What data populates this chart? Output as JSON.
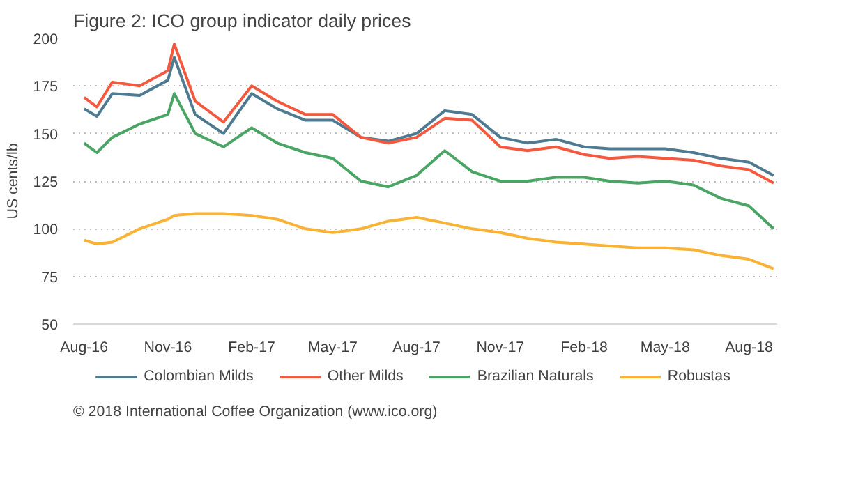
{
  "chart_data": {
    "type": "line",
    "title": "Figure 2: ICO group indicator daily prices",
    "ylabel": "US cents/lb",
    "x": [
      "2016-08-01",
      "2016-08-15",
      "2016-09-01",
      "2016-10-01",
      "2016-11-01",
      "2016-11-08",
      "2016-12-01",
      "2017-01-01",
      "2017-02-01",
      "2017-03-01",
      "2017-04-01",
      "2017-05-01",
      "2017-06-01",
      "2017-07-01",
      "2017-08-01",
      "2017-09-01",
      "2017-10-01",
      "2017-11-01",
      "2017-12-01",
      "2018-01-01",
      "2018-02-01",
      "2018-03-01",
      "2018-04-01",
      "2018-05-01",
      "2018-06-01",
      "2018-07-01",
      "2018-08-01",
      "2018-08-28"
    ],
    "series": [
      {
        "name": "Colombian Milds",
        "color": "#4e7b91",
        "values": [
          163,
          159,
          171,
          170,
          178,
          190,
          160,
          150,
          171,
          163,
          157,
          157,
          148,
          146,
          150,
          162,
          160,
          148,
          145,
          147,
          143,
          142,
          142,
          142,
          140,
          137,
          135,
          128
        ]
      },
      {
        "name": "Other Milds",
        "color": "#f4593f",
        "values": [
          169,
          164,
          177,
          175,
          183,
          197,
          167,
          156,
          175,
          167,
          160,
          160,
          148,
          145,
          148,
          158,
          157,
          143,
          141,
          143,
          139,
          137,
          138,
          137,
          136,
          133,
          131,
          124
        ]
      },
      {
        "name": "Brazilian Naturals",
        "color": "#4aa564",
        "values": [
          145,
          140,
          148,
          155,
          160,
          171,
          150,
          143,
          153,
          145,
          140,
          137,
          125,
          122,
          128,
          141,
          130,
          125,
          125,
          127,
          127,
          125,
          124,
          125,
          123,
          116,
          112,
          100
        ]
      },
      {
        "name": "Robustas",
        "color": "#f9b233",
        "values": [
          94,
          92,
          93,
          100,
          105,
          107,
          108,
          108,
          107,
          105,
          100,
          98,
          100,
          104,
          106,
          103,
          100,
          98,
          95,
          93,
          92,
          91,
          90,
          90,
          89,
          86,
          84,
          79
        ]
      }
    ],
    "xlim": [
      "2016-07-20",
      "2018-09-01"
    ],
    "xticks": [
      {
        "value": "2016-08-01",
        "label": "Aug-16"
      },
      {
        "value": "2016-11-01",
        "label": "Nov-16"
      },
      {
        "value": "2017-02-01",
        "label": "Feb-17"
      },
      {
        "value": "2017-05-01",
        "label": "May-17"
      },
      {
        "value": "2017-08-01",
        "label": "Aug-17"
      },
      {
        "value": "2017-11-01",
        "label": "Nov-17"
      },
      {
        "value": "2018-02-01",
        "label": "Feb-18"
      },
      {
        "value": "2018-05-01",
        "label": "May-18"
      },
      {
        "value": "2018-08-01",
        "label": "Aug-18"
      }
    ],
    "ylim": [
      50,
      200
    ],
    "yticks": [
      50,
      75,
      100,
      125,
      150,
      175,
      200
    ],
    "grid": "y",
    "legend": "bottom",
    "marker": "none",
    "line_style": "solid",
    "annotations": [
      "© 2018 International Coffee Organization (www.ico.org)"
    ]
  }
}
